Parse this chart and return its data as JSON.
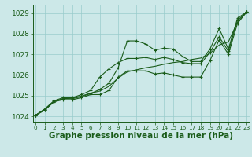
{
  "x": [
    0,
    1,
    2,
    3,
    4,
    5,
    6,
    7,
    8,
    9,
    10,
    11,
    12,
    13,
    14,
    15,
    16,
    17,
    18,
    19,
    20,
    21,
    22,
    23
  ],
  "line_jagged": [
    1024.05,
    1024.3,
    1024.7,
    1024.85,
    1024.85,
    1024.95,
    1025.1,
    1025.3,
    1025.6,
    1026.35,
    1027.65,
    1027.65,
    1027.5,
    1027.2,
    1027.3,
    1027.25,
    1026.9,
    1026.65,
    1026.65,
    1027.25,
    1028.25,
    1027.25,
    1028.75,
    1029.05
  ],
  "line_upper": [
    1024.05,
    1024.35,
    1024.75,
    1024.9,
    1024.9,
    1025.05,
    1025.25,
    1025.9,
    1026.3,
    1026.6,
    1026.8,
    1026.8,
    1026.85,
    1026.75,
    1026.85,
    1026.75,
    1026.6,
    1026.55,
    1026.55,
    1027.1,
    1027.85,
    1027.15,
    1028.65,
    1029.05
  ],
  "line_lower": [
    1024.05,
    1024.3,
    1024.7,
    1024.8,
    1024.8,
    1024.9,
    1025.05,
    1025.05,
    1025.25,
    1025.9,
    1026.2,
    1026.2,
    1026.2,
    1026.05,
    1026.1,
    1026.0,
    1025.9,
    1025.9,
    1025.9,
    1026.7,
    1027.7,
    1027.0,
    1028.5,
    1029.05
  ],
  "line_straight": [
    1024.05,
    1024.35,
    1024.72,
    1024.85,
    1024.88,
    1024.98,
    1025.12,
    1025.22,
    1025.45,
    1025.85,
    1026.15,
    1026.25,
    1026.35,
    1026.42,
    1026.52,
    1026.6,
    1026.65,
    1026.75,
    1026.82,
    1027.05,
    1027.45,
    1027.6,
    1028.55,
    1029.05
  ],
  "bg_color": "#cce8e8",
  "grid_color": "#99cccc",
  "line_color": "#1a5c1a",
  "xlabel": "Graphe pression niveau de la mer (hPa)",
  "ylim": [
    1023.7,
    1029.4
  ],
  "xlim": [
    -0.3,
    23.3
  ],
  "yticks": [
    1024,
    1025,
    1026,
    1027,
    1028,
    1029
  ],
  "xticks": [
    0,
    1,
    2,
    3,
    4,
    5,
    6,
    7,
    8,
    9,
    10,
    11,
    12,
    13,
    14,
    15,
    16,
    17,
    18,
    19,
    20,
    21,
    22,
    23
  ],
  "xlabel_fontsize": 7.5,
  "tick_fontsize": 6.5
}
